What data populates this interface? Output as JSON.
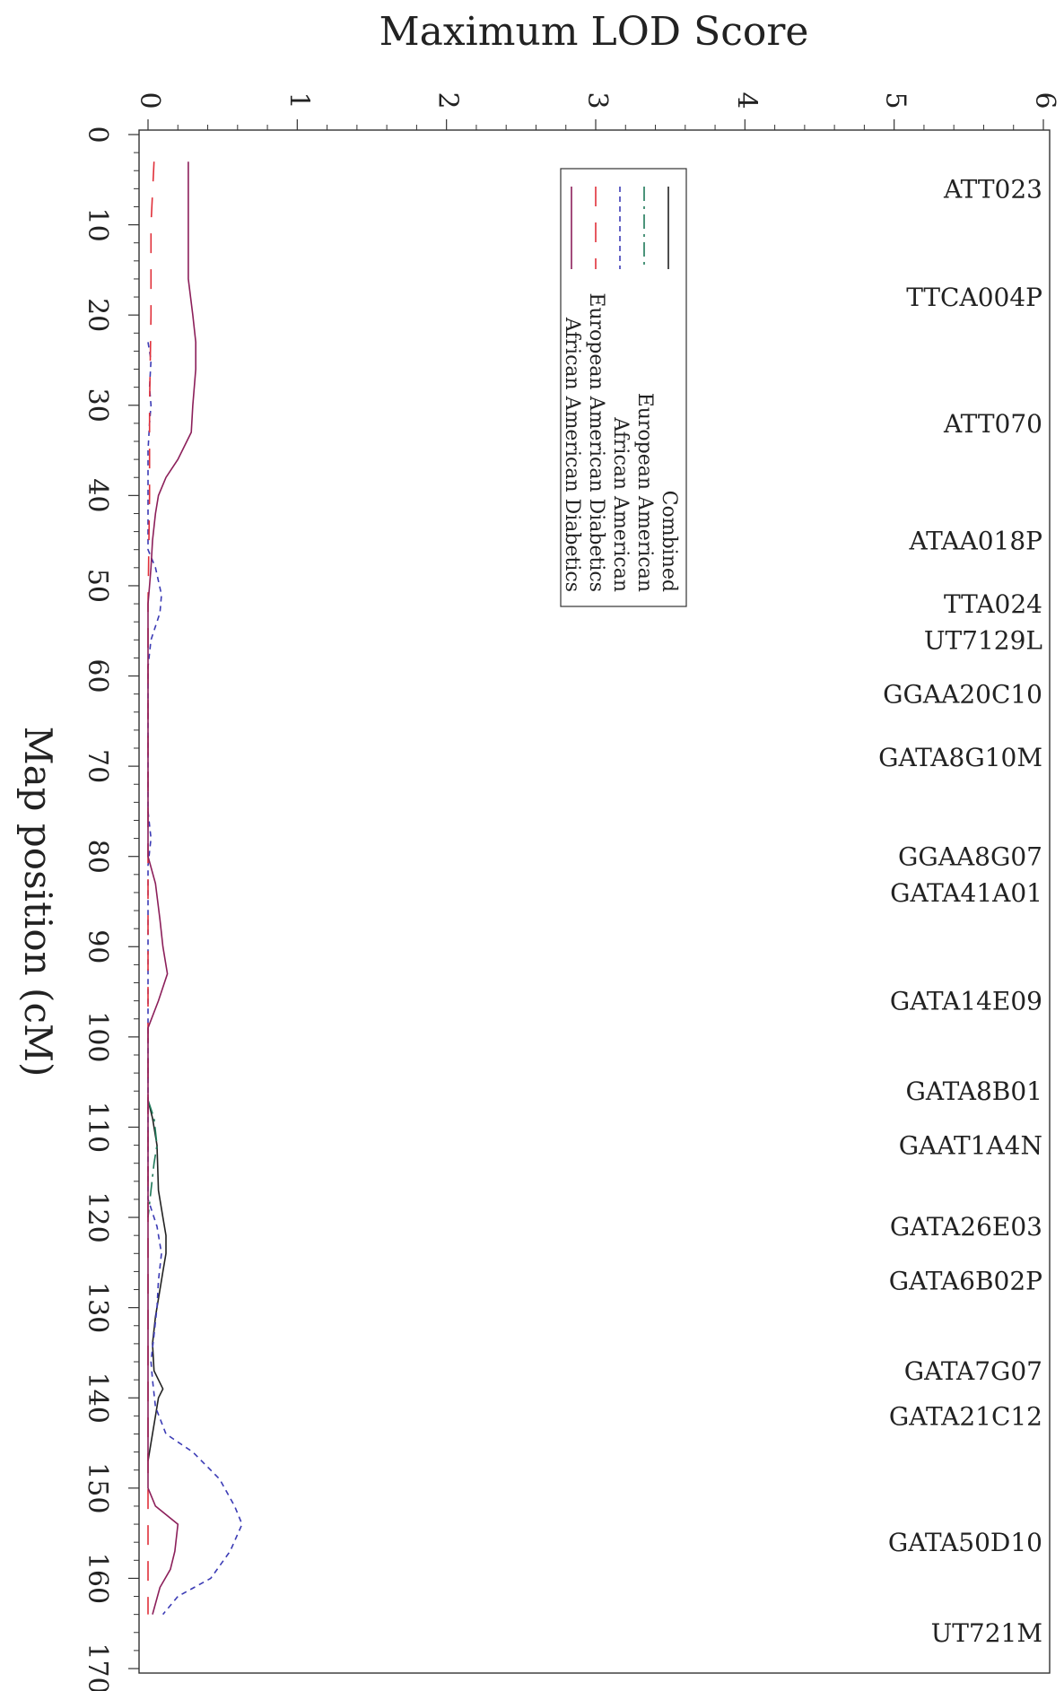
{
  "chart_data": {
    "type": "line",
    "title": "",
    "xlabel": "Map position (cM)",
    "ylabel": "Maximum LOD Score",
    "xlim": [
      0,
      170
    ],
    "ylim": [
      0,
      6
    ],
    "x_ticks": [
      "0",
      "10",
      "20",
      "30",
      "40",
      "50",
      "60",
      "70",
      "80",
      "90",
      "100",
      "110",
      "120",
      "130",
      "140",
      "150",
      "160",
      "170"
    ],
    "y_ticks": [
      "0",
      "1",
      "2",
      "3",
      "4",
      "5",
      "6"
    ],
    "orientation": "rotated-90",
    "legend_position": "top-right",
    "markers": [
      {
        "label": "ATT023",
        "pos": 6
      },
      {
        "label": "TTCA004P",
        "pos": 18
      },
      {
        "label": "ATT070",
        "pos": 32
      },
      {
        "label": "ATAA018P",
        "pos": 45
      },
      {
        "label": "TTA024",
        "pos": 52
      },
      {
        "label": "UT7129L",
        "pos": 56
      },
      {
        "label": "GGAA20C10",
        "pos": 62
      },
      {
        "label": "GATA8G10M",
        "pos": 69
      },
      {
        "label": "GGAA8G07",
        "pos": 80
      },
      {
        "label": "GATA41A01",
        "pos": 84
      },
      {
        "label": "GATA14E09",
        "pos": 96
      },
      {
        "label": "GATA8B01",
        "pos": 106
      },
      {
        "label": "GAAT1A4N",
        "pos": 112
      },
      {
        "label": "GATA26E03",
        "pos": 121
      },
      {
        "label": "GATA6B02P",
        "pos": 127
      },
      {
        "label": "GATA7G07",
        "pos": 137
      },
      {
        "label": "GATA21C12",
        "pos": 142
      },
      {
        "label": "GATA50D10",
        "pos": 156
      },
      {
        "label": "UT721M",
        "pos": 166
      }
    ],
    "series": [
      {
        "name": "Combined",
        "color": "#222222",
        "dash": "solid",
        "points": [
          [
            107,
            0
          ],
          [
            109,
            0.03
          ],
          [
            112,
            0.06
          ],
          [
            117,
            0.07
          ],
          [
            120,
            0.1
          ],
          [
            122,
            0.12
          ],
          [
            124,
            0.12
          ],
          [
            126,
            0.1
          ],
          [
            128,
            0.08
          ],
          [
            131,
            0.05
          ],
          [
            134,
            0.03
          ],
          [
            137,
            0.04
          ],
          [
            139,
            0.1
          ],
          [
            140,
            0.07
          ],
          [
            142,
            0.05
          ],
          [
            145,
            0.02
          ],
          [
            147,
            0
          ]
        ]
      },
      {
        "name": "European American",
        "color": "#1f7a5a",
        "dash": "long",
        "points": [
          [
            107,
            0
          ],
          [
            109,
            0.04
          ],
          [
            112,
            0.06
          ],
          [
            114,
            0.04
          ],
          [
            117,
            0.02
          ],
          [
            120,
            0.0
          ]
        ]
      },
      {
        "name": "African American",
        "color": "#3b3bb5",
        "dash": "short",
        "points": [
          [
            23,
            0
          ],
          [
            25,
            0.02
          ],
          [
            28,
            0.01
          ],
          [
            30,
            0.02
          ],
          [
            32,
            0.01
          ],
          [
            35,
            0.0
          ],
          [
            46,
            0.0
          ],
          [
            48,
            0.05
          ],
          [
            51,
            0.09
          ],
          [
            53,
            0.08
          ],
          [
            56,
            0.02
          ],
          [
            59,
            0.0
          ],
          [
            75,
            0.0
          ],
          [
            78,
            0.02
          ],
          [
            81,
            0.0
          ],
          [
            118,
            0.0
          ],
          [
            121,
            0.06
          ],
          [
            124,
            0.09
          ],
          [
            127,
            0.07
          ],
          [
            130,
            0.06
          ],
          [
            133,
            0.04
          ],
          [
            136,
            0.02
          ],
          [
            138,
            0.03
          ],
          [
            141,
            0.05
          ],
          [
            144,
            0.12
          ],
          [
            146,
            0.3
          ],
          [
            149,
            0.48
          ],
          [
            152,
            0.58
          ],
          [
            154,
            0.63
          ],
          [
            157,
            0.55
          ],
          [
            160,
            0.42
          ],
          [
            162,
            0.2
          ],
          [
            164,
            0.1
          ]
        ]
      },
      {
        "name": "European American Diabetics",
        "color": "#e0303a",
        "dash": "long-gap",
        "points": [
          [
            3,
            0.04
          ],
          [
            10,
            0.02
          ],
          [
            20,
            0.02
          ],
          [
            30,
            0.01
          ],
          [
            40,
            0.01
          ],
          [
            52,
            0.0
          ],
          [
            164,
            0.0
          ]
        ]
      },
      {
        "name": "African American Diabetics",
        "color": "#8c1f5a",
        "dash": "solid",
        "points": [
          [
            3,
            0.27
          ],
          [
            10,
            0.27
          ],
          [
            16,
            0.27
          ],
          [
            20,
            0.3
          ],
          [
            23,
            0.32
          ],
          [
            26,
            0.32
          ],
          [
            30,
            0.3
          ],
          [
            33,
            0.29
          ],
          [
            36,
            0.2
          ],
          [
            38,
            0.12
          ],
          [
            40,
            0.07
          ],
          [
            42,
            0.05
          ],
          [
            45,
            0.03
          ],
          [
            48,
            0.02
          ],
          [
            50,
            0.01
          ],
          [
            52,
            0.0
          ],
          [
            80,
            0.0
          ],
          [
            83,
            0.05
          ],
          [
            87,
            0.08
          ],
          [
            90,
            0.1
          ],
          [
            93,
            0.13
          ],
          [
            96,
            0.07
          ],
          [
            99,
            0.0
          ],
          [
            101,
            0.0
          ],
          [
            150,
            0.0
          ],
          [
            152,
            0.05
          ],
          [
            154,
            0.2
          ],
          [
            157,
            0.18
          ],
          [
            159,
            0.15
          ],
          [
            161,
            0.08
          ],
          [
            164,
            0.03
          ]
        ]
      }
    ]
  }
}
